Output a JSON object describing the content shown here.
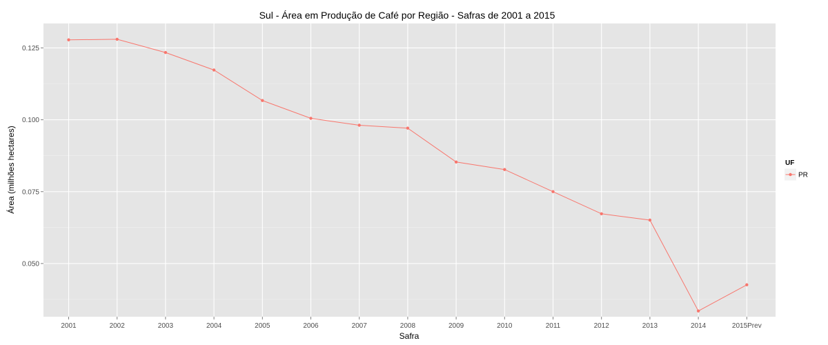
{
  "chart_data": {
    "type": "line",
    "title": "Sul  - Área em Produção de Café por Região - Safras de 2001 a 2015",
    "xlabel": "Safra",
    "ylabel": "Área (milhões hectares)",
    "categories": [
      "2001",
      "2002",
      "2003",
      "2004",
      "2005",
      "2006",
      "2007",
      "2008",
      "2009",
      "2010",
      "2011",
      "2012",
      "2013",
      "2014",
      "2015Prev"
    ],
    "series": [
      {
        "name": "PR",
        "values": [
          0.1278,
          0.128,
          0.1234,
          0.1173,
          0.1067,
          0.1005,
          0.0981,
          0.0971,
          0.0853,
          0.0827,
          0.075,
          0.0673,
          0.0651,
          0.0335,
          0.0426
        ]
      }
    ],
    "ylim": [
      0.0315,
      0.1335
    ],
    "yticks": [
      0.05,
      0.075,
      0.1,
      0.125
    ],
    "ytick_labels": [
      "0.050",
      "0.075",
      "0.100",
      "0.125"
    ],
    "grid": true,
    "legend": {
      "title": "UF",
      "position": "right"
    },
    "colors": {
      "panel_background": "#e5e5e5",
      "grid_major": "#ffffff",
      "grid_minor": "#f2f2f2",
      "series": [
        "#f8766d"
      ]
    }
  }
}
